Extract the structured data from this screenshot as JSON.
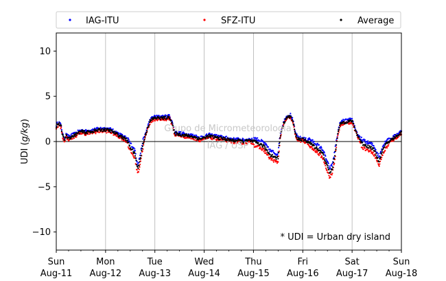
{
  "chart_data": {
    "type": "scatter",
    "ylabel_prefix": "UDI (",
    "ylabel_unit": "g/kg",
    "ylabel_suffix": ")",
    "ylim": [
      -12,
      12
    ],
    "yticks": [
      -10,
      -5,
      0,
      5,
      10
    ],
    "xlim": [
      0,
      7
    ],
    "x_tick_labels": [
      {
        "day": "Sun",
        "date": "Aug-11"
      },
      {
        "day": "Mon",
        "date": "Aug-12"
      },
      {
        "day": "Tue",
        "date": "Aug-13"
      },
      {
        "day": "Wed",
        "date": "Aug-14"
      },
      {
        "day": "Thu",
        "date": "Aug-15"
      },
      {
        "day": "Fri",
        "date": "Aug-16"
      },
      {
        "day": "Sat",
        "date": "Aug-17"
      },
      {
        "day": "Sun",
        "date": "Aug-18"
      }
    ],
    "grid": "vertical",
    "legend_position": "top, outside plot",
    "note": "* UDI = Urban dry island",
    "watermark_line1": "Grupo de Micrometeorologia",
    "watermark_line2": "IAG / USP",
    "series": [
      {
        "name": "IAG-ITU",
        "color": "#0000ff",
        "offset": 0.25
      },
      {
        "name": "SFZ-ITU",
        "color": "#ff0000",
        "offset": -0.25
      },
      {
        "name": "Average",
        "color": "#000000",
        "offset": 0.0
      }
    ],
    "x_units": "days since Sun Aug-11 00:00",
    "average_curve": [
      [
        0.0,
        1.7
      ],
      [
        0.05,
        2.0
      ],
      [
        0.1,
        1.6
      ],
      [
        0.13,
        0.6
      ],
      [
        0.16,
        0.2
      ],
      [
        0.2,
        0.6
      ],
      [
        0.25,
        0.4
      ],
      [
        0.3,
        0.5
      ],
      [
        0.4,
        0.8
      ],
      [
        0.5,
        1.1
      ],
      [
        0.6,
        1.0
      ],
      [
        0.7,
        1.1
      ],
      [
        0.8,
        1.2
      ],
      [
        0.9,
        1.3
      ],
      [
        1.0,
        1.3
      ],
      [
        1.1,
        1.2
      ],
      [
        1.2,
        0.9
      ],
      [
        1.3,
        0.6
      ],
      [
        1.4,
        0.3
      ],
      [
        1.45,
        0.0
      ],
      [
        1.5,
        -0.6
      ],
      [
        1.55,
        -1.0
      ],
      [
        1.6,
        -1.5
      ],
      [
        1.63,
        -2.5
      ],
      [
        1.66,
        -3.0
      ],
      [
        1.7,
        -2.0
      ],
      [
        1.75,
        -0.5
      ],
      [
        1.8,
        0.5
      ],
      [
        1.85,
        1.5
      ],
      [
        1.9,
        2.2
      ],
      [
        1.95,
        2.5
      ],
      [
        2.0,
        2.6
      ],
      [
        2.1,
        2.6
      ],
      [
        2.2,
        2.6
      ],
      [
        2.3,
        2.7
      ],
      [
        2.35,
        2.0
      ],
      [
        2.4,
        0.9
      ],
      [
        2.5,
        0.8
      ],
      [
        2.6,
        0.7
      ],
      [
        2.7,
        0.6
      ],
      [
        2.8,
        0.5
      ],
      [
        2.9,
        0.3
      ],
      [
        3.0,
        0.4
      ],
      [
        3.1,
        0.6
      ],
      [
        3.2,
        0.5
      ],
      [
        3.3,
        0.4
      ],
      [
        3.4,
        0.3
      ],
      [
        3.5,
        0.2
      ],
      [
        3.6,
        0.1
      ],
      [
        3.7,
        0.1
      ],
      [
        3.8,
        0.0
      ],
      [
        3.9,
        0.1
      ],
      [
        4.0,
        0.0
      ],
      [
        4.1,
        -0.2
      ],
      [
        4.2,
        -0.5
      ],
      [
        4.25,
        -0.8
      ],
      [
        4.3,
        -1.2
      ],
      [
        4.35,
        -1.5
      ],
      [
        4.4,
        -1.6
      ],
      [
        4.45,
        -1.8
      ],
      [
        4.5,
        -1.8
      ],
      [
        4.52,
        -0.5
      ],
      [
        4.55,
        0.8
      ],
      [
        4.6,
        1.8
      ],
      [
        4.65,
        2.5
      ],
      [
        4.7,
        2.7
      ],
      [
        4.75,
        2.8
      ],
      [
        4.8,
        2.2
      ],
      [
        4.85,
        0.8
      ],
      [
        4.9,
        0.3
      ],
      [
        5.0,
        0.2
      ],
      [
        5.1,
        0.0
      ],
      [
        5.2,
        -0.4
      ],
      [
        5.3,
        -0.8
      ],
      [
        5.4,
        -1.3
      ],
      [
        5.45,
        -2.0
      ],
      [
        5.5,
        -2.8
      ],
      [
        5.55,
        -3.5
      ],
      [
        5.6,
        -3.0
      ],
      [
        5.65,
        -1.5
      ],
      [
        5.7,
        0.5
      ],
      [
        5.75,
        1.8
      ],
      [
        5.8,
        2.1
      ],
      [
        5.9,
        2.2
      ],
      [
        6.0,
        2.3
      ],
      [
        6.05,
        1.5
      ],
      [
        6.1,
        0.8
      ],
      [
        6.15,
        0.3
      ],
      [
        6.2,
        -0.2
      ],
      [
        6.3,
        -0.5
      ],
      [
        6.4,
        -0.7
      ],
      [
        6.45,
        -1.0
      ],
      [
        6.5,
        -1.6
      ],
      [
        6.55,
        -2.2
      ],
      [
        6.6,
        -1.2
      ],
      [
        6.7,
        -0.2
      ],
      [
        6.8,
        0.2
      ],
      [
        6.9,
        0.6
      ],
      [
        7.0,
        1.0
      ]
    ]
  }
}
